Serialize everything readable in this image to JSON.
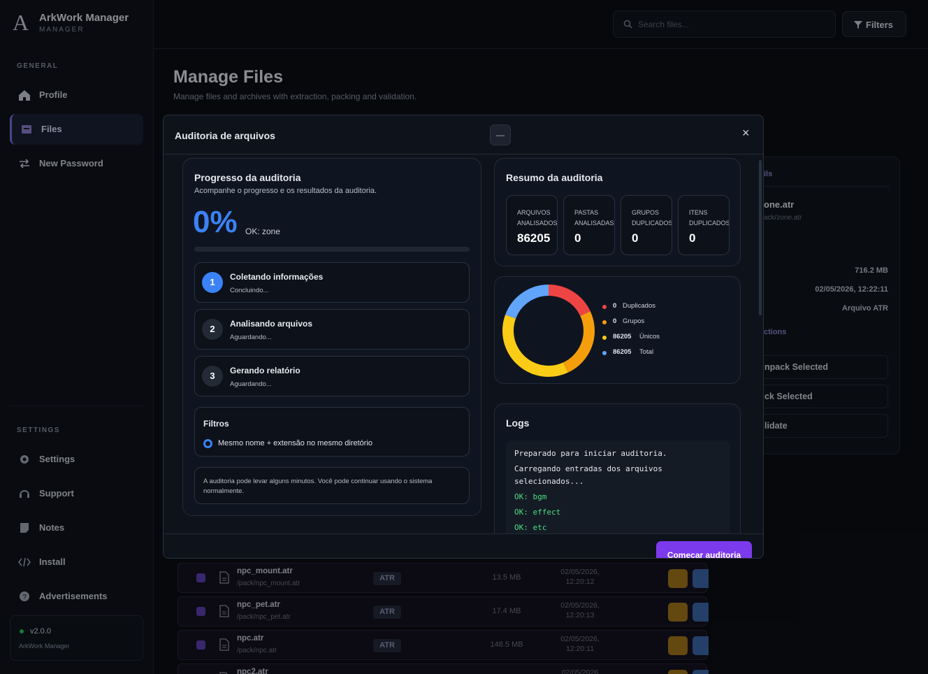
{
  "sidebar": {
    "logo": "A",
    "brand": "ArkWork Manager",
    "brand_sub": "MANAGER",
    "general_label": "GENERAL",
    "general": [
      "Profile",
      "Files",
      "New Password"
    ],
    "settings_label": "SETTINGS",
    "settings": [
      "Settings",
      "Support",
      "Notes",
      "Install",
      "Advertisements"
    ],
    "version": "v2.0.0",
    "version_sub": "ArkWork Manager"
  },
  "topbar": {
    "search_placeholder": "Search files...",
    "filters": "Filters"
  },
  "page": {
    "title": "Manage Files",
    "subtitle": "Manage files and archives with extraction, packing and validation."
  },
  "details": {
    "heading": "ils",
    "name": "one.atr",
    "path": "ack/zone.atr",
    "size": "716.2 MB",
    "date": "02/05/2026, 12:22:11",
    "kind": "Arquivo ATR",
    "actions_heading": "ctions",
    "actions": [
      "npack Selected",
      "ck Selected",
      "lidate"
    ]
  },
  "files": [
    {
      "name": "npc_mount.atr",
      "path": "/pack/npc_mount.atr",
      "type": "ATR",
      "size": "13.5 MB",
      "date": "02/05/2026,",
      "time": "12:20:12"
    },
    {
      "name": "npc_pet.atr",
      "path": "/pack/npc_pet.atr",
      "type": "ATR",
      "size": "17.4 MB",
      "date": "02/05/2026,",
      "time": "12:20:13"
    },
    {
      "name": "npc.atr",
      "path": "/pack/npc.atr",
      "type": "ATR",
      "size": "148.5 MB",
      "date": "02/05/2026,",
      "time": "12:20:11"
    },
    {
      "name": "npc2.atr",
      "path": "",
      "type": "",
      "size": "",
      "date": "02/05/2026",
      "time": ""
    }
  ],
  "modal": {
    "title": "Auditoria de arquivos",
    "minimize": "—",
    "close": "×",
    "progress": {
      "title": "Progresso da auditoria",
      "subtitle": "Acompanhe o progresso e os resultados da auditoria.",
      "percent": "0%",
      "current": "OK: zone",
      "steps": [
        {
          "number": "1",
          "title": "Coletando informações",
          "status": "Concluindo..."
        },
        {
          "number": "2",
          "title": "Analisando arquivos",
          "status": "Aguardando..."
        },
        {
          "number": "3",
          "title": "Gerando relatório",
          "status": "Aguardando..."
        }
      ],
      "filters_title": "Filtros",
      "filter_option": "Mesmo nome + extensão no mesmo diretório",
      "note": "A auditoria pode levar alguns minutos. Você pode continuar usando o sistema normalmente."
    },
    "summary": {
      "title": "Resumo da auditoria",
      "stats": [
        {
          "label": "ARQUIVOS ANALISADOS",
          "value": "86205"
        },
        {
          "label": "PASTAS ANALISADAS",
          "value": "0"
        },
        {
          "label": "GRUPOS DUPLICADOS",
          "value": "0"
        },
        {
          "label": "ITENS DUPLICADOS",
          "value": "0"
        }
      ],
      "legend": [
        {
          "value": "0",
          "label": "Duplicados",
          "color": "#ef4444"
        },
        {
          "value": "0",
          "label": "Grupos",
          "color": "#f59e0b"
        },
        {
          "value": "86205",
          "label": "Únicos",
          "color": "#facc15"
        },
        {
          "value": "86205",
          "label": "Total",
          "color": "#60a5fa"
        }
      ]
    },
    "logs": {
      "title": "Logs",
      "lines": [
        {
          "text": "Preparado para iniciar auditoria.",
          "ok": false
        },
        {
          "text": "Carregando entradas dos arquivos selecionados...",
          "ok": false
        },
        {
          "text": "OK: bgm",
          "ok": true
        },
        {
          "text": "OK: effect",
          "ok": true
        },
        {
          "text": "OK: etc",
          "ok": true
        }
      ]
    },
    "start_button": "Começar auditoria"
  }
}
